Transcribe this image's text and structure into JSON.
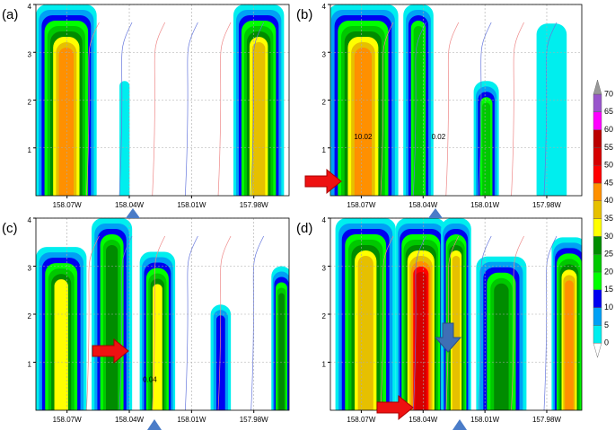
{
  "chart_data": [
    {
      "type": "contour",
      "label": "(a)",
      "xlim": [
        -158.085,
        -157.963
      ],
      "ylim": [
        0,
        4
      ],
      "grid": true,
      "xticks": [
        {
          "value": -158.07,
          "label": "158.07W"
        },
        {
          "value": -158.04,
          "label": "158.04W"
        },
        {
          "value": -158.01,
          "label": "158.01W"
        },
        {
          "value": -157.98,
          "label": "157.98W"
        }
      ],
      "yticks": [
        1,
        2,
        3,
        4
      ],
      "annotations": []
    },
    {
      "type": "contour",
      "label": "(b)",
      "xlim": [
        -158.085,
        -157.963
      ],
      "ylim": [
        0,
        4
      ],
      "grid": true,
      "xticks": [
        {
          "value": -158.07,
          "label": "158.07W"
        },
        {
          "value": -158.04,
          "label": "158.04W"
        },
        {
          "value": -158.01,
          "label": "158.01W"
        },
        {
          "value": -157.98,
          "label": "157.98W"
        }
      ],
      "yticks": [
        1,
        2,
        3,
        4
      ],
      "annotations": [
        "10.02",
        "0.02"
      ]
    },
    {
      "type": "contour",
      "label": "(c)",
      "xlim": [
        -158.085,
        -157.963
      ],
      "ylim": [
        0,
        4
      ],
      "grid": true,
      "xticks": [
        {
          "value": -158.07,
          "label": "158.07W"
        },
        {
          "value": -158.04,
          "label": "158.04W"
        },
        {
          "value": -158.01,
          "label": "158.01W"
        },
        {
          "value": -157.98,
          "label": "157.98W"
        }
      ],
      "yticks": [
        1,
        2,
        3,
        4
      ],
      "annotations": [
        "0.04"
      ]
    },
    {
      "type": "contour",
      "label": "(d)",
      "xlim": [
        -158.085,
        -157.963
      ],
      "ylim": [
        0,
        4
      ],
      "grid": true,
      "xticks": [
        {
          "value": -158.07,
          "label": "158.07W"
        },
        {
          "value": -158.04,
          "label": "158.04W"
        },
        {
          "value": -158.01,
          "label": "158.01W"
        },
        {
          "value": -157.98,
          "label": "157.98W"
        }
      ],
      "yticks": [
        1,
        2,
        3,
        4
      ],
      "annotations": []
    }
  ],
  "colorbar": {
    "levels": [
      0,
      5,
      10,
      15,
      20,
      25,
      30,
      35,
      40,
      45,
      50,
      55,
      60,
      65,
      70
    ],
    "colors": [
      "#00eeee",
      "#00a0f5",
      "#0000f0",
      "#00ff00",
      "#00c800",
      "#008c00",
      "#ffff00",
      "#e6c000",
      "#ff9000",
      "#ff0000",
      "#d60000",
      "#bb0000",
      "#ff00ff",
      "#9955cc"
    ]
  }
}
